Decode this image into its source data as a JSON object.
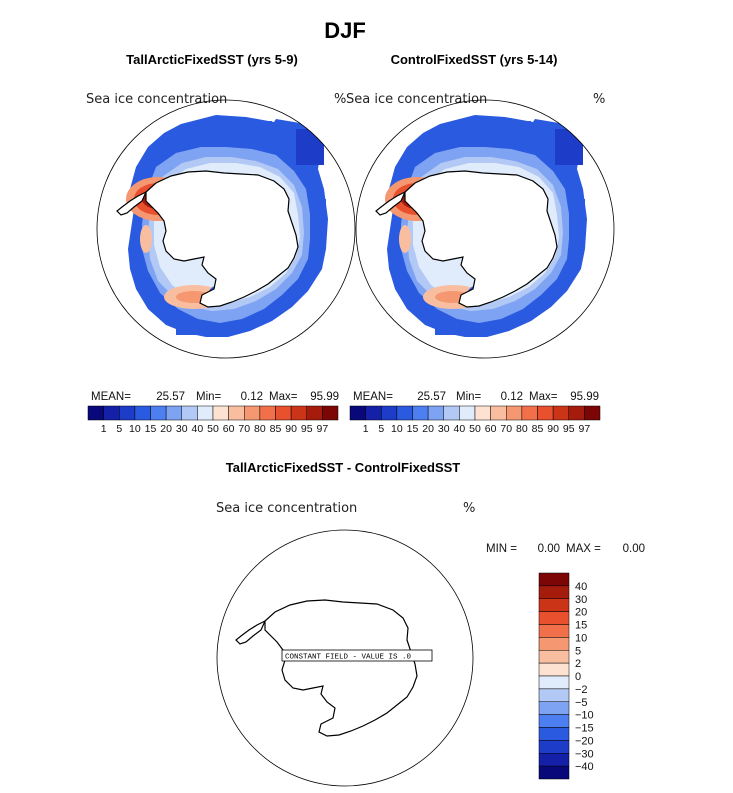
{
  "page": {
    "title": "DJF"
  },
  "panels": [
    {
      "id": "left",
      "title": "TallArcticFixedSST (yrs 5-9)",
      "variable": "Sea ice concentration",
      "units": "%",
      "stats": {
        "mean_label": "MEAN=",
        "mean": "25.57",
        "min_label": "Min=",
        "min": "0.12",
        "max_label": "Max=",
        "max": "95.99"
      }
    },
    {
      "id": "right",
      "title": "ControlFixedSST (yrs 5-14)",
      "variable": "Sea ice concentration",
      "units": "%",
      "stats": {
        "mean_label": "MEAN=",
        "mean": "25.57",
        "min_label": "Min=",
        "min": "0.12",
        "max_label": "Max=",
        "max": "95.99"
      }
    },
    {
      "id": "diff",
      "title": "TallArcticFixedSST - ControlFixedSST",
      "variable": "Sea ice concentration",
      "units": "%",
      "stats": {
        "min_label": "MIN =",
        "min": "0.00",
        "max_label": "MAX =",
        "max": "0.00"
      },
      "note": "CONSTANT FIELD - VALUE IS .0"
    }
  ],
  "colorbar_main": {
    "colors": [
      "#08087a",
      "#1520a8",
      "#1d3cc8",
      "#2a5ae0",
      "#4d7ff0",
      "#7ea3f3",
      "#b2c8f5",
      "#e0ecfb",
      "#fde2d2",
      "#f9bea0",
      "#f59770",
      "#f1704a",
      "#e8502e",
      "#cc3418",
      "#a61c0c",
      "#7c0606"
    ],
    "labels": [
      "1",
      "5",
      "10",
      "15",
      "20",
      "30",
      "40",
      "50",
      "60",
      "70",
      "80",
      "85",
      "90",
      "95",
      "97"
    ]
  },
  "colorbar_diff": {
    "colors_top_to_bottom": [
      "#7c0606",
      "#a61c0c",
      "#cc3418",
      "#e8502e",
      "#f1704a",
      "#f59770",
      "#f9bea0",
      "#fde2d2",
      "#e0ecfb",
      "#b2c8f5",
      "#7ea3f3",
      "#4d7ff0",
      "#2a5ae0",
      "#1d3cc8",
      "#1520a8",
      "#08087a"
    ],
    "labels_top_to_bottom": [
      "40",
      "30",
      "20",
      "15",
      "10",
      "5",
      "2",
      "0",
      "−2",
      "−5",
      "−10",
      "−15",
      "−20",
      "−30",
      "−40"
    ]
  }
}
